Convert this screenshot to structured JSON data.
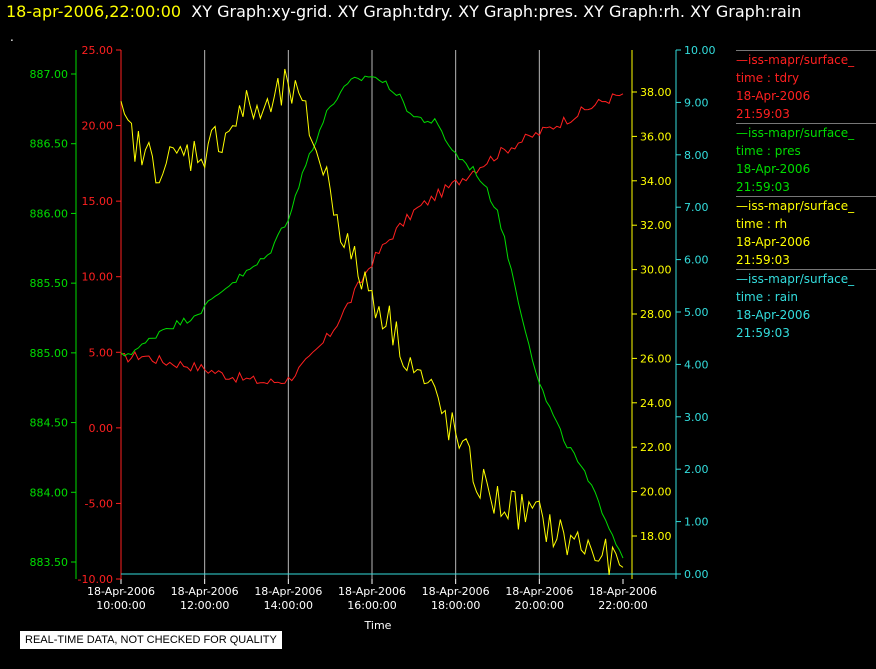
{
  "header": {
    "timestamp": "18-apr-2006,22:00:00",
    "titles": "XY Graph:xy-grid.  XY Graph:tdry.  XY Graph:pres.  XY Graph:rh.  XY Graph:rain"
  },
  "dot_mark": ".",
  "notice": "REAL-TIME DATA, NOT CHECKED FOR QUALITY",
  "legend": [
    {
      "name": "—iss-mapr/surface_",
      "var": "time : tdry",
      "date": "18-Apr-2006",
      "time": "21:59:03",
      "color": "#ff2020"
    },
    {
      "name": "—iss-mapr/surface_",
      "var": "time : pres",
      "date": "18-Apr-2006",
      "time": "21:59:03",
      "color": "#00dd00"
    },
    {
      "name": "—iss-mapr/surface_",
      "var": "time : rh",
      "date": "18-Apr-2006",
      "time": "21:59:03",
      "color": "#ffff00"
    },
    {
      "name": "—iss-mapr/surface_",
      "var": "time : rain",
      "date": "18-Apr-2006",
      "time": "21:59:03",
      "color": "#33dddd"
    }
  ],
  "chart_data": {
    "type": "line",
    "xlabel": "Time",
    "x_ticks": [
      {
        "date": "18-Apr-2006",
        "time": "10:00:00"
      },
      {
        "date": "18-Apr-2006",
        "time": "12:00:00"
      },
      {
        "date": "18-Apr-2006",
        "time": "14:00:00"
      },
      {
        "date": "18-Apr-2006",
        "time": "16:00:00"
      },
      {
        "date": "18-Apr-2006",
        "time": "18:00:00"
      },
      {
        "date": "18-Apr-2006",
        "time": "20:00:00"
      },
      {
        "date": "18-Apr-2006",
        "time": "22:00:00"
      }
    ],
    "xlim_hours": [
      10,
      22
    ],
    "grid": "vertical",
    "axes": {
      "tdry": {
        "color": "#ff2020",
        "ylim": [
          -10,
          25
        ],
        "ticks": [
          "25.00",
          "20.00",
          "15.00",
          "10.00",
          "5.00",
          "0.00",
          "-5.00",
          "-10.00"
        ]
      },
      "pres": {
        "color": "#00dd00",
        "ylim": [
          883.4,
          887.2
        ],
        "ticks": [
          "887.00",
          "886.50",
          "886.00",
          "885.50",
          "885.00",
          "884.50",
          "884.00",
          "883.50"
        ]
      },
      "rh": {
        "color": "#ffff00",
        "ylim": [
          16.7,
          39.5
        ],
        "ticks": [
          "38.00",
          "36.00",
          "34.00",
          "32.00",
          "30.00",
          "28.00",
          "26.00",
          "24.00",
          "22.00",
          "20.00",
          "18.00"
        ]
      },
      "rain": {
        "color": "#33dddd",
        "ylim": [
          0,
          10.3
        ],
        "ticks": [
          "10.00",
          "9.00",
          "8.00",
          "7.00",
          "6.00",
          "5.00",
          "4.00",
          "3.00",
          "2.00",
          "1.00",
          "0.00"
        ]
      }
    },
    "series": [
      {
        "name": "tdry",
        "axis": "tdry",
        "x": [
          10,
          10.5,
          11,
          11.5,
          12,
          12.5,
          13,
          13.5,
          14,
          14.5,
          15,
          15.5,
          16,
          16.5,
          17,
          17.5,
          18,
          18.5,
          19,
          19.5,
          20,
          20.5,
          21,
          21.5,
          22
        ],
        "values": [
          4.6,
          4.8,
          4.4,
          4.2,
          3.9,
          3.5,
          3.2,
          3.0,
          3.2,
          4.5,
          6.2,
          8.5,
          11.0,
          12.8,
          14.3,
          15.3,
          16.2,
          17.2,
          18.1,
          18.9,
          19.5,
          20.2,
          20.9,
          21.6,
          22.1
        ]
      },
      {
        "name": "pres",
        "axis": "pres",
        "x": [
          10,
          10.5,
          11,
          11.5,
          12,
          12.5,
          13,
          13.5,
          14,
          14.5,
          15,
          15.5,
          16,
          16.5,
          17,
          17.5,
          18,
          18.5,
          19,
          19.5,
          20,
          20.5,
          21,
          21.5,
          22
        ],
        "values": [
          885.0,
          885.07,
          885.2,
          885.25,
          885.35,
          885.5,
          885.6,
          885.72,
          886.0,
          886.45,
          886.8,
          886.97,
          887.02,
          886.92,
          886.72,
          886.68,
          886.45,
          886.32,
          886.05,
          885.4,
          884.8,
          884.45,
          884.2,
          883.9,
          883.55
        ]
      },
      {
        "name": "rh",
        "axis": "rh",
        "x": [
          10,
          10.5,
          11,
          11.5,
          12,
          12.5,
          13,
          13.5,
          14,
          14.5,
          15,
          15.5,
          16,
          16.5,
          17,
          17.5,
          18,
          18.5,
          19,
          19.5,
          20,
          20.5,
          21,
          21.5,
          22
        ],
        "values": [
          36.5,
          35.0,
          34.5,
          35.0,
          35.2,
          36.0,
          37.0,
          36.8,
          38.0,
          36.2,
          33.5,
          30.5,
          29.0,
          27.5,
          25.8,
          24.5,
          22.8,
          21.0,
          20.0,
          19.7,
          19.3,
          18.5,
          18.2,
          17.6,
          17.2
        ]
      },
      {
        "name": "rain",
        "axis": "rain",
        "x": [
          10,
          22
        ],
        "values": [
          0,
          0
        ]
      }
    ]
  }
}
